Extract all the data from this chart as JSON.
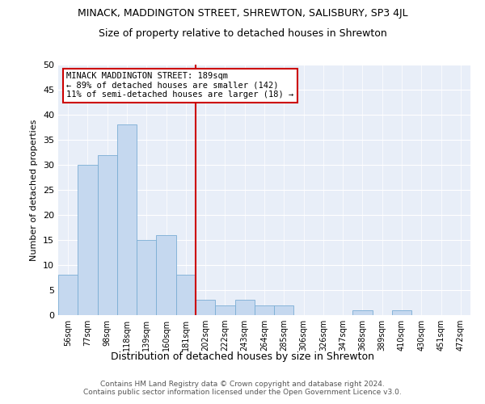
{
  "title": "MINACK, MADDINGTON STREET, SHREWTON, SALISBURY, SP3 4JL",
  "subtitle": "Size of property relative to detached houses in Shrewton",
  "xlabel": "Distribution of detached houses by size in Shrewton",
  "ylabel": "Number of detached properties",
  "bar_labels": [
    "56sqm",
    "77sqm",
    "98sqm",
    "118sqm",
    "139sqm",
    "160sqm",
    "181sqm",
    "202sqm",
    "222sqm",
    "243sqm",
    "264sqm",
    "285sqm",
    "306sqm",
    "326sqm",
    "347sqm",
    "368sqm",
    "389sqm",
    "410sqm",
    "430sqm",
    "451sqm",
    "472sqm"
  ],
  "bar_values": [
    8,
    30,
    32,
    38,
    15,
    16,
    8,
    3,
    2,
    3,
    2,
    2,
    0,
    0,
    0,
    1,
    0,
    1,
    0,
    0,
    0
  ],
  "property_index": 6,
  "annotation_text": "MINACK MADDINGTON STREET: 189sqm\n← 89% of detached houses are smaller (142)\n11% of semi-detached houses are larger (18) →",
  "bar_color": "#c5d8ef",
  "bar_edge_color": "#7aadd4",
  "vline_color": "#cc0000",
  "annotation_box_color": "#cc0000",
  "background_color": "#e8eef8",
  "footer_text": "Contains HM Land Registry data © Crown copyright and database right 2024.\nContains public sector information licensed under the Open Government Licence v3.0.",
  "ylim": [
    0,
    50
  ],
  "yticks": [
    0,
    5,
    10,
    15,
    20,
    25,
    30,
    35,
    40,
    45,
    50
  ]
}
